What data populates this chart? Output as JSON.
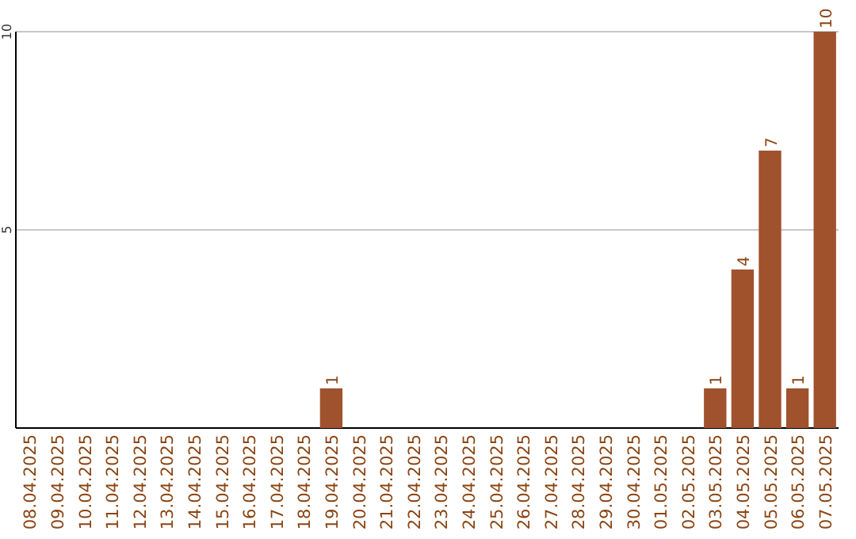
{
  "chart_data": {
    "type": "bar",
    "categories": [
      "08.04.2025",
      "09.04.2025",
      "10.04.2025",
      "11.04.2025",
      "12.04.2025",
      "13.04.2025",
      "14.04.2025",
      "15.04.2025",
      "16.04.2025",
      "17.04.2025",
      "18.04.2025",
      "19.04.2025",
      "20.04.2025",
      "21.04.2025",
      "22.04.2025",
      "23.04.2025",
      "24.04.2025",
      "25.04.2025",
      "26.04.2025",
      "27.04.2025",
      "28.04.2025",
      "29.04.2025",
      "30.04.2025",
      "01.05.2025",
      "02.05.2025",
      "03.05.2025",
      "04.05.2025",
      "05.05.2025",
      "06.05.2025",
      "07.05.2025"
    ],
    "values": [
      0,
      0,
      0,
      0,
      0,
      0,
      0,
      0,
      0,
      0,
      0,
      1,
      0,
      0,
      0,
      0,
      0,
      0,
      0,
      0,
      0,
      0,
      0,
      0,
      0,
      1,
      4,
      7,
      1,
      10
    ],
    "value_labels": [
      null,
      null,
      null,
      null,
      null,
      null,
      null,
      null,
      null,
      null,
      null,
      "1",
      null,
      null,
      null,
      null,
      null,
      null,
      null,
      null,
      null,
      null,
      null,
      null,
      null,
      "1",
      "4",
      "7",
      "1",
      "10"
    ],
    "color": "#a0522d",
    "ylim": [
      0,
      10
    ],
    "yticks": [
      5,
      10
    ],
    "grid": "y"
  }
}
